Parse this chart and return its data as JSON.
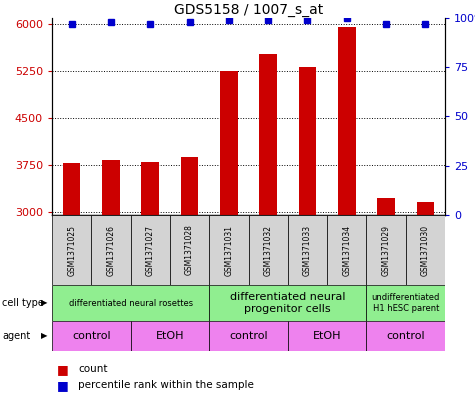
{
  "title": "GDS5158 / 1007_s_at",
  "samples": [
    "GSM1371025",
    "GSM1371026",
    "GSM1371027",
    "GSM1371028",
    "GSM1371031",
    "GSM1371032",
    "GSM1371033",
    "GSM1371034",
    "GSM1371029",
    "GSM1371030"
  ],
  "counts": [
    3780,
    3830,
    3800,
    3870,
    5250,
    5530,
    5320,
    5960,
    3220,
    3150
  ],
  "percentiles": [
    97,
    98,
    97,
    98,
    99,
    99,
    99,
    100,
    97,
    97
  ],
  "ylim_left": [
    2950,
    6100
  ],
  "ylim_right": [
    0,
    100
  ],
  "yticks_left": [
    3000,
    3750,
    4500,
    5250,
    6000
  ],
  "yticks_right": [
    0,
    25,
    50,
    75,
    100
  ],
  "bar_color": "#cc0000",
  "dot_color": "#0000cc",
  "bar_width": 0.45,
  "cell_type_color": "#90ee90",
  "agent_color": "#ee82ee",
  "sample_color": "#d3d3d3",
  "grid_color": "black",
  "left_axis_color": "#cc0000",
  "right_axis_color": "#0000cc"
}
